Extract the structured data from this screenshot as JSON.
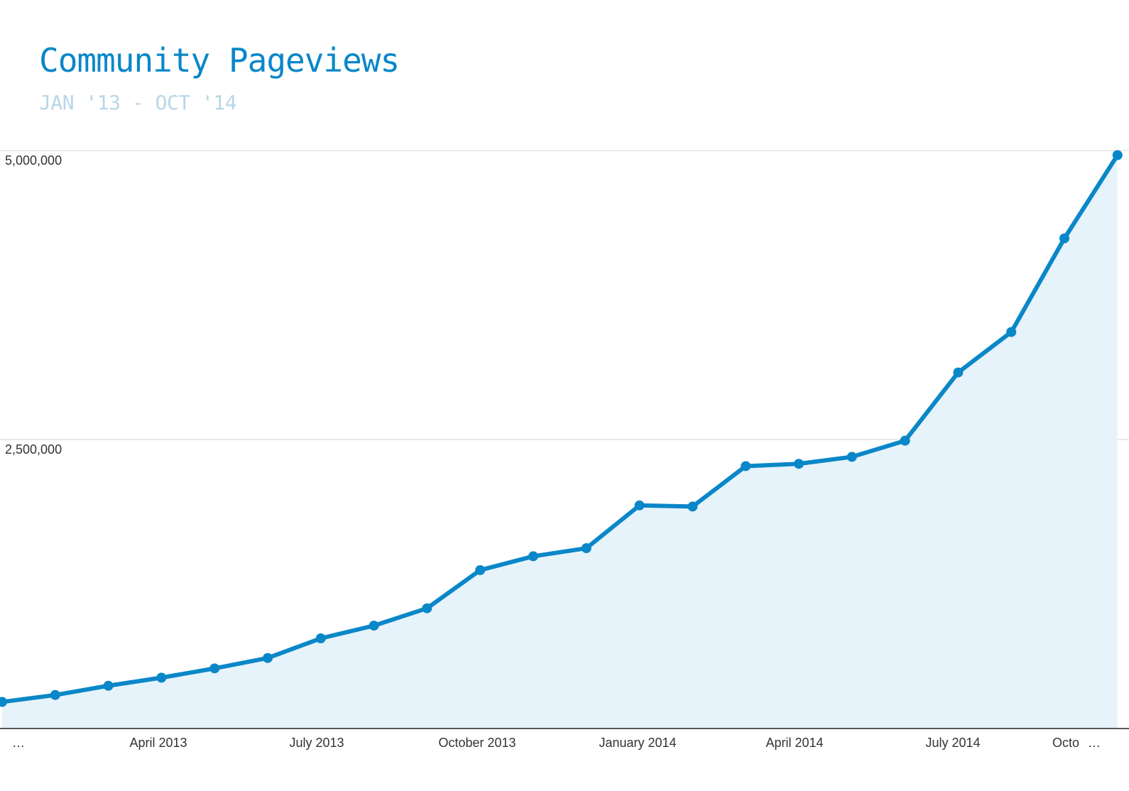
{
  "title": "Community Pageviews",
  "subtitle": "JAN '13 - OCT '14",
  "colors": {
    "line": "#0a87c8",
    "area": "#e6f3fa",
    "title": "#0a87c8",
    "subtitle": "#b8d6e8",
    "grid": "#e3e3e3",
    "axis": "#222222"
  },
  "chart_data": {
    "type": "area",
    "title": "Community Pageviews",
    "subtitle": "JAN '13 - OCT '14",
    "xlabel": "",
    "ylabel": "",
    "ylim": [
      0,
      5000000
    ],
    "y_ticks": [
      {
        "value": 2500000,
        "label": "2,500,000"
      },
      {
        "value": 5000000,
        "label": "5,000,000"
      }
    ],
    "x_tick_labels": [
      "…",
      "April 2013",
      "July 2013",
      "October 2013",
      "January 2014",
      "April 2014",
      "July 2014",
      "Octo",
      "…"
    ],
    "grid": true,
    "legend": "none",
    "series": [
      {
        "x": [
          "2013-01",
          "2013-02",
          "2013-03",
          "2013-04",
          "2013-05",
          "2013-06",
          "2013-07",
          "2013-08",
          "2013-09",
          "2013-10",
          "2013-11",
          "2013-12",
          "2014-01",
          "2014-02",
          "2014-03",
          "2014-04",
          "2014-05",
          "2014-06",
          "2014-07",
          "2014-08",
          "2014-09",
          "2014-10"
        ],
        "values": [
          230000,
          290000,
          370000,
          440000,
          520000,
          610000,
          780000,
          890000,
          1040000,
          1370000,
          1490000,
          1560000,
          1930000,
          1920000,
          2270000,
          2290000,
          2350000,
          2490000,
          3080000,
          3430000,
          4240000,
          4960000
        ]
      }
    ]
  }
}
